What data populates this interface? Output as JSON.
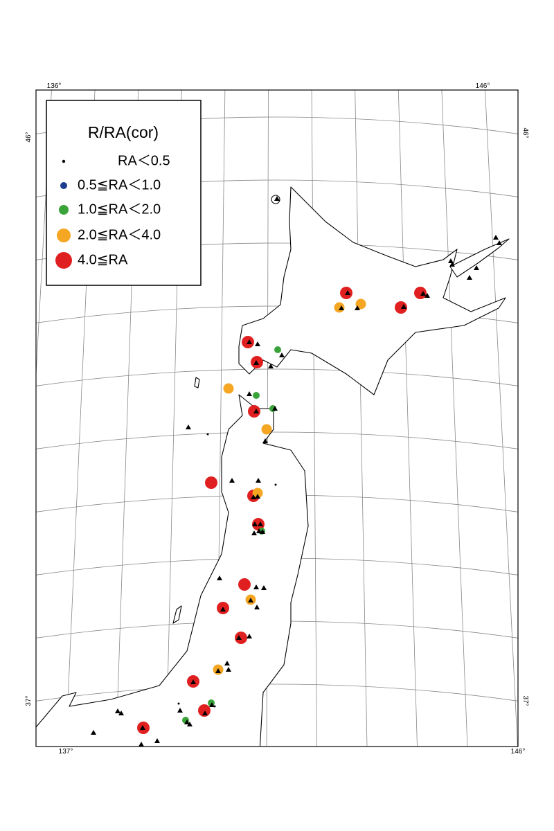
{
  "legend": {
    "title": "R/RA(cor)",
    "entries": [
      "RA＜0.5",
      "0.5≦RA＜1.0",
      "1.0≦RA＜2.0",
      "2.0≦RA＜4.0",
      "4.0≦RA"
    ]
  },
  "graticule_labels": {
    "top": [
      "136°",
      "146°"
    ],
    "left": [
      "46°",
      "37°"
    ],
    "right": [
      "46°",
      "37°"
    ],
    "bottom": [
      "137°",
      "146°"
    ]
  }
}
